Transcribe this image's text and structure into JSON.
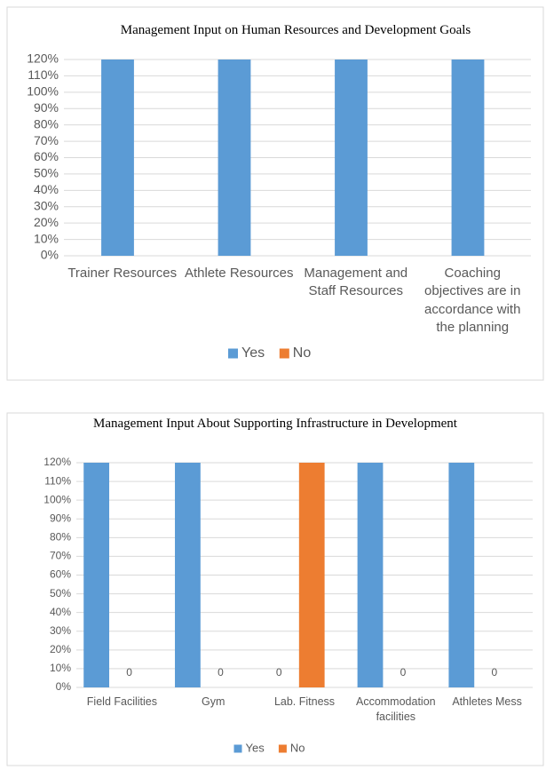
{
  "chart_data": [
    {
      "type": "bar",
      "title": "Management  Input on Human Resources and Development Goals",
      "categories": [
        "Trainer Resources",
        "Athlete Resources",
        "Management and Staff Resources",
        "Coaching objectives are in accordance with the planning"
      ],
      "series": [
        {
          "name": "Yes",
          "color": "#5b9bd5",
          "values": [
            120,
            120,
            120,
            120
          ]
        },
        {
          "name": "No",
          "color": "#ed7d31",
          "values": [
            0,
            0,
            0,
            0
          ]
        }
      ],
      "ylim": [
        0,
        120
      ],
      "yticks": [
        {
          "value": 0,
          "label": "0%"
        },
        {
          "value": 10,
          "label": "10%"
        },
        {
          "value": 20,
          "label": "20%"
        },
        {
          "value": 30,
          "label": "30%"
        },
        {
          "value": 40,
          "label": "40%"
        },
        {
          "value": 50,
          "label": "50%"
        },
        {
          "value": 60,
          "label": "60%"
        },
        {
          "value": 70,
          "label": "70%"
        },
        {
          "value": 80,
          "label": "80%"
        },
        {
          "value": 90,
          "label": "90%"
        },
        {
          "value": 100,
          "label": "100%"
        },
        {
          "value": 110,
          "label": "110%"
        },
        {
          "value": 120,
          "label": "120%"
        }
      ],
      "grid": true,
      "legend": "bottom"
    },
    {
      "type": "bar",
      "title": "Management  Input About Supporting Infrastructure in Development",
      "categories": [
        "Field Facilities",
        "Gym",
        "Lab. Fitness",
        "Accommodation facilities",
        "Athletes Mess"
      ],
      "series": [
        {
          "name": "Yes",
          "color": "#5b9bd5",
          "values": [
            120,
            120,
            0,
            120,
            120
          ],
          "value_labels": [
            null,
            null,
            "0",
            null,
            null
          ]
        },
        {
          "name": "No",
          "color": "#ed7d31",
          "values": [
            0,
            0,
            120,
            0,
            0
          ],
          "value_labels": [
            "0",
            "0",
            null,
            "0",
            "0"
          ]
        }
      ],
      "ylim": [
        0,
        120
      ],
      "yticks": [
        {
          "value": 0,
          "label": "0%"
        },
        {
          "value": 10,
          "label": "10%"
        },
        {
          "value": 20,
          "label": "20%"
        },
        {
          "value": 30,
          "label": "30%"
        },
        {
          "value": 40,
          "label": "40%"
        },
        {
          "value": 50,
          "label": "50%"
        },
        {
          "value": 60,
          "label": "60%"
        },
        {
          "value": 70,
          "label": "70%"
        },
        {
          "value": 80,
          "label": "80%"
        },
        {
          "value": 90,
          "label": "90%"
        },
        {
          "value": 100,
          "label": "100%"
        },
        {
          "value": 110,
          "label": "110%"
        },
        {
          "value": 120,
          "label": "120%"
        }
      ],
      "grid": true,
      "legend": "bottom"
    }
  ]
}
